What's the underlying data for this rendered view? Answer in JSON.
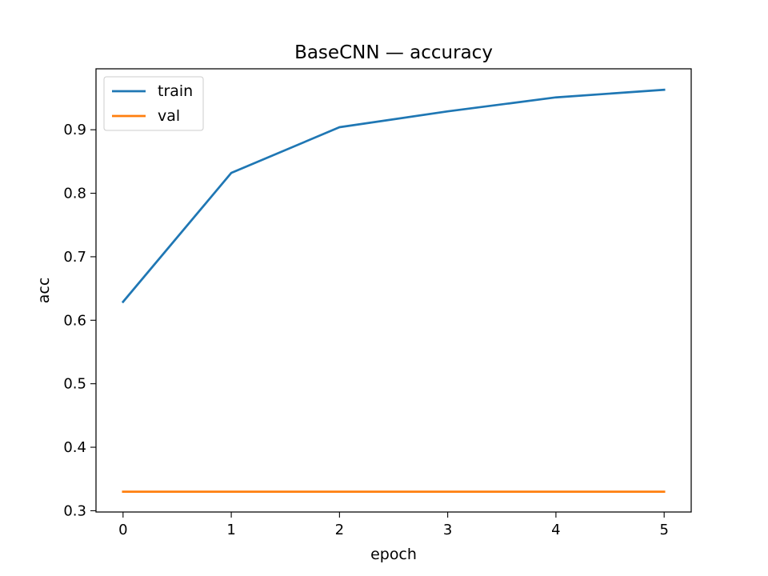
{
  "chart_data": {
    "type": "line",
    "title": "BaseCNN — accuracy",
    "xlabel": "epoch",
    "ylabel": "acc",
    "x": [
      0,
      1,
      2,
      3,
      4,
      5
    ],
    "xticks": [
      "0",
      "1",
      "2",
      "3",
      "4",
      "5"
    ],
    "yticks": [
      "0.3",
      "0.4",
      "0.5",
      "0.6",
      "0.7",
      "0.8",
      "0.9"
    ],
    "xlim": [
      -0.25,
      5.25
    ],
    "ylim": [
      0.298,
      0.996
    ],
    "grid": false,
    "legend_position": "upper-left",
    "series": [
      {
        "name": "train",
        "color": "#1f77b4",
        "values": [
          0.629,
          0.832,
          0.904,
          0.929,
          0.951,
          0.963
        ]
      },
      {
        "name": "val",
        "color": "#ff7f0e",
        "values": [
          0.33,
          0.33,
          0.33,
          0.33,
          0.33,
          0.33
        ]
      }
    ]
  }
}
